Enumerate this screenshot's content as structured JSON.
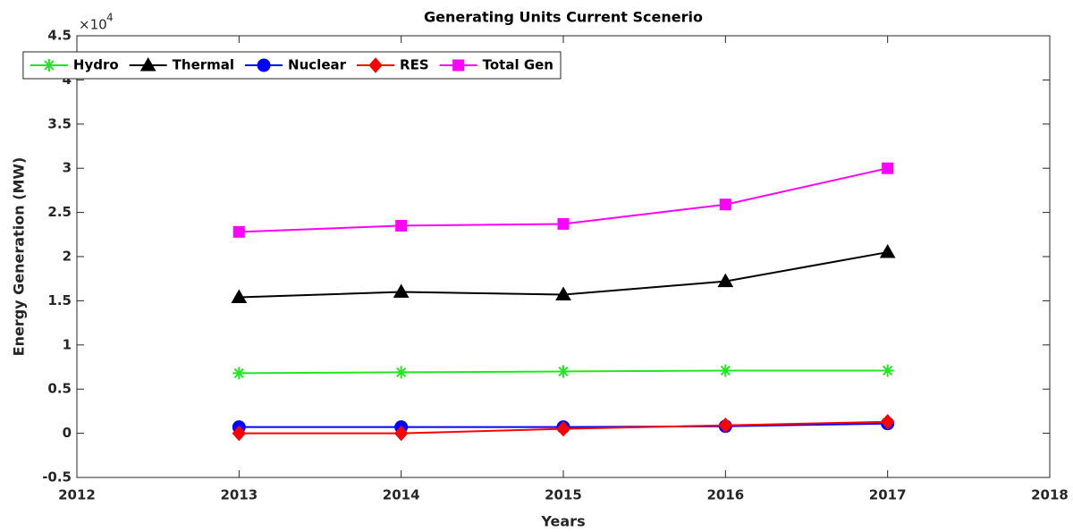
{
  "chart_data": {
    "type": "line",
    "title": "Generating Units Current Scenerio",
    "xlabel": "Years",
    "ylabel": "Energy Generation (MW)",
    "y_multiplier": {
      "base": "×10",
      "exponent": "4"
    },
    "x": [
      2013,
      2014,
      2015,
      2016,
      2017
    ],
    "series": [
      {
        "name": "Hydro",
        "color": "#22e622",
        "marker": "asterisk",
        "values": [
          0.68,
          0.69,
          0.7,
          0.71,
          0.71
        ]
      },
      {
        "name": "Thermal",
        "color": "#000000",
        "marker": "triangle",
        "values": [
          1.54,
          1.6,
          1.57,
          1.72,
          2.05
        ]
      },
      {
        "name": "Nuclear",
        "color": "#0000ff",
        "marker": "circle",
        "values": [
          0.07,
          0.07,
          0.07,
          0.08,
          0.11
        ]
      },
      {
        "name": "RES",
        "color": "#ff0000",
        "marker": "diamond",
        "values": [
          0,
          0,
          0.05,
          0.09,
          0.13
        ]
      },
      {
        "name": "Total Gen",
        "color": "#ff00ff",
        "marker": "square",
        "values": [
          2.28,
          2.35,
          2.37,
          2.59,
          3.0
        ]
      }
    ],
    "xlim": [
      2012,
      2018
    ],
    "xticks": [
      2012,
      2013,
      2014,
      2015,
      2016,
      2017,
      2018
    ],
    "ylim": [
      -0.5,
      4.5
    ],
    "yticks": [
      -0.5,
      0,
      0.5,
      1,
      1.5,
      2,
      2.5,
      3,
      3.5,
      4,
      4.5
    ],
    "legend": "top"
  }
}
